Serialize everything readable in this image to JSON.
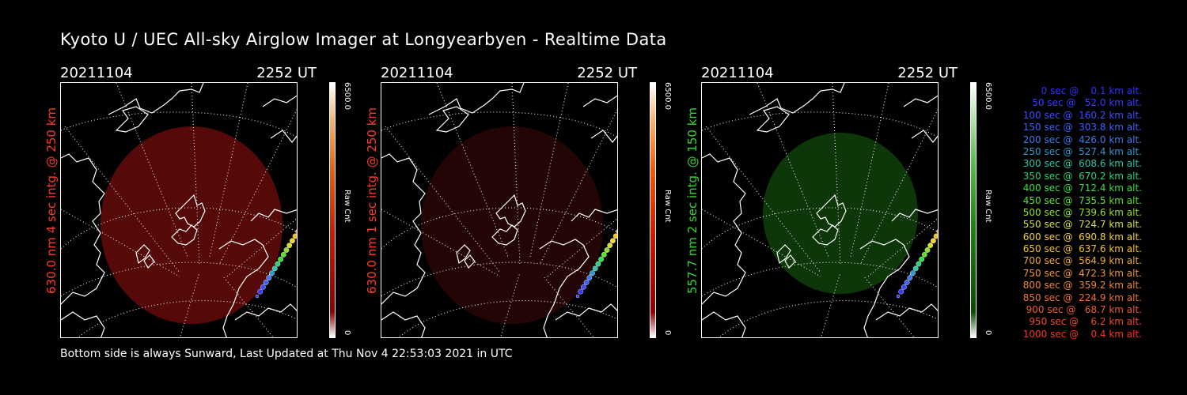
{
  "title": "Kyoto U / UEC All-sky Airglow Imager at Longyearbyen - Realtime Data",
  "footer": "Bottom side is always Sunward, Last Updated at Thu Nov  4 22:53:03 2021 in UTC",
  "panels": [
    {
      "date": "20211104",
      "time": "2252 UT",
      "ylabel": "630.0 nm 4 sec intg. @ 250 km",
      "label_color": "#ff3a2a",
      "cbar_max": "6500.0",
      "cbar_min": "0",
      "cbar_unit": "Raw Cnt",
      "glow_color": "#5a0a08",
      "glow_opacity": 0.95
    },
    {
      "date": "20211104",
      "time": "2252 UT",
      "ylabel": "630.0 nm 1 sec intg. @ 250 km",
      "label_color": "#ff3a2a",
      "cbar_max": "6500.0",
      "cbar_min": "0",
      "cbar_unit": "Raw Cnt",
      "glow_color": "#2c0606",
      "glow_opacity": 0.8
    },
    {
      "date": "20211104",
      "time": "2252 UT",
      "ylabel": "557.7 nm 2 sec intg. @ 150 km",
      "label_color": "#34d634",
      "cbar_max": "6500.0",
      "cbar_min": "0",
      "cbar_unit": "Raw Cnt",
      "glow_color": "#0e3a08",
      "glow_opacity": 0.95
    }
  ],
  "trajectory_legend": [
    {
      "text": "   0 sec @    0.1 km alt.",
      "color": "#3030ff"
    },
    {
      "text": "  50 sec @   52.0 km alt.",
      "color": "#3a3aff"
    },
    {
      "text": " 100 sec @  160.2 km alt.",
      "color": "#3a4cff"
    },
    {
      "text": " 150 sec @  303.8 km alt.",
      "color": "#3a62ff"
    },
    {
      "text": " 200 sec @  426.0 km alt.",
      "color": "#3a7cee"
    },
    {
      "text": " 250 sec @  527.4 km alt.",
      "color": "#2a9ad0"
    },
    {
      "text": " 300 sec @  608.6 km alt.",
      "color": "#28c6a8"
    },
    {
      "text": " 350 sec @  670.2 km alt.",
      "color": "#28d47a"
    },
    {
      "text": " 400 sec @  712.4 km alt.",
      "color": "#34e040"
    },
    {
      "text": " 450 sec @  735.5 km alt.",
      "color": "#5ee02a"
    },
    {
      "text": " 500 sec @  739.6 km alt.",
      "color": "#90e02a"
    },
    {
      "text": " 550 sec @  724.7 km alt.",
      "color": "#d4e02a"
    },
    {
      "text": " 600 sec @  690.8 km alt.",
      "color": "#f2d42a"
    },
    {
      "text": " 650 sec @  637.6 km alt.",
      "color": "#f2c02a"
    },
    {
      "text": " 700 sec @  564.9 km alt.",
      "color": "#f2aa2a"
    },
    {
      "text": " 750 sec @  472.3 km alt.",
      "color": "#f2962a"
    },
    {
      "text": " 800 sec @  359.2 km alt.",
      "color": "#f2862a"
    },
    {
      "text": " 850 sec @  224.9 km alt.",
      "color": "#f2722a"
    },
    {
      "text": " 900 sec @   68.7 km alt.",
      "color": "#f25a2a"
    },
    {
      "text": " 950 sec @    6.2 km alt.",
      "color": "#f2462a"
    },
    {
      "text": "1000 sec @    0.4 km alt.",
      "color": "#ff3020"
    }
  ]
}
